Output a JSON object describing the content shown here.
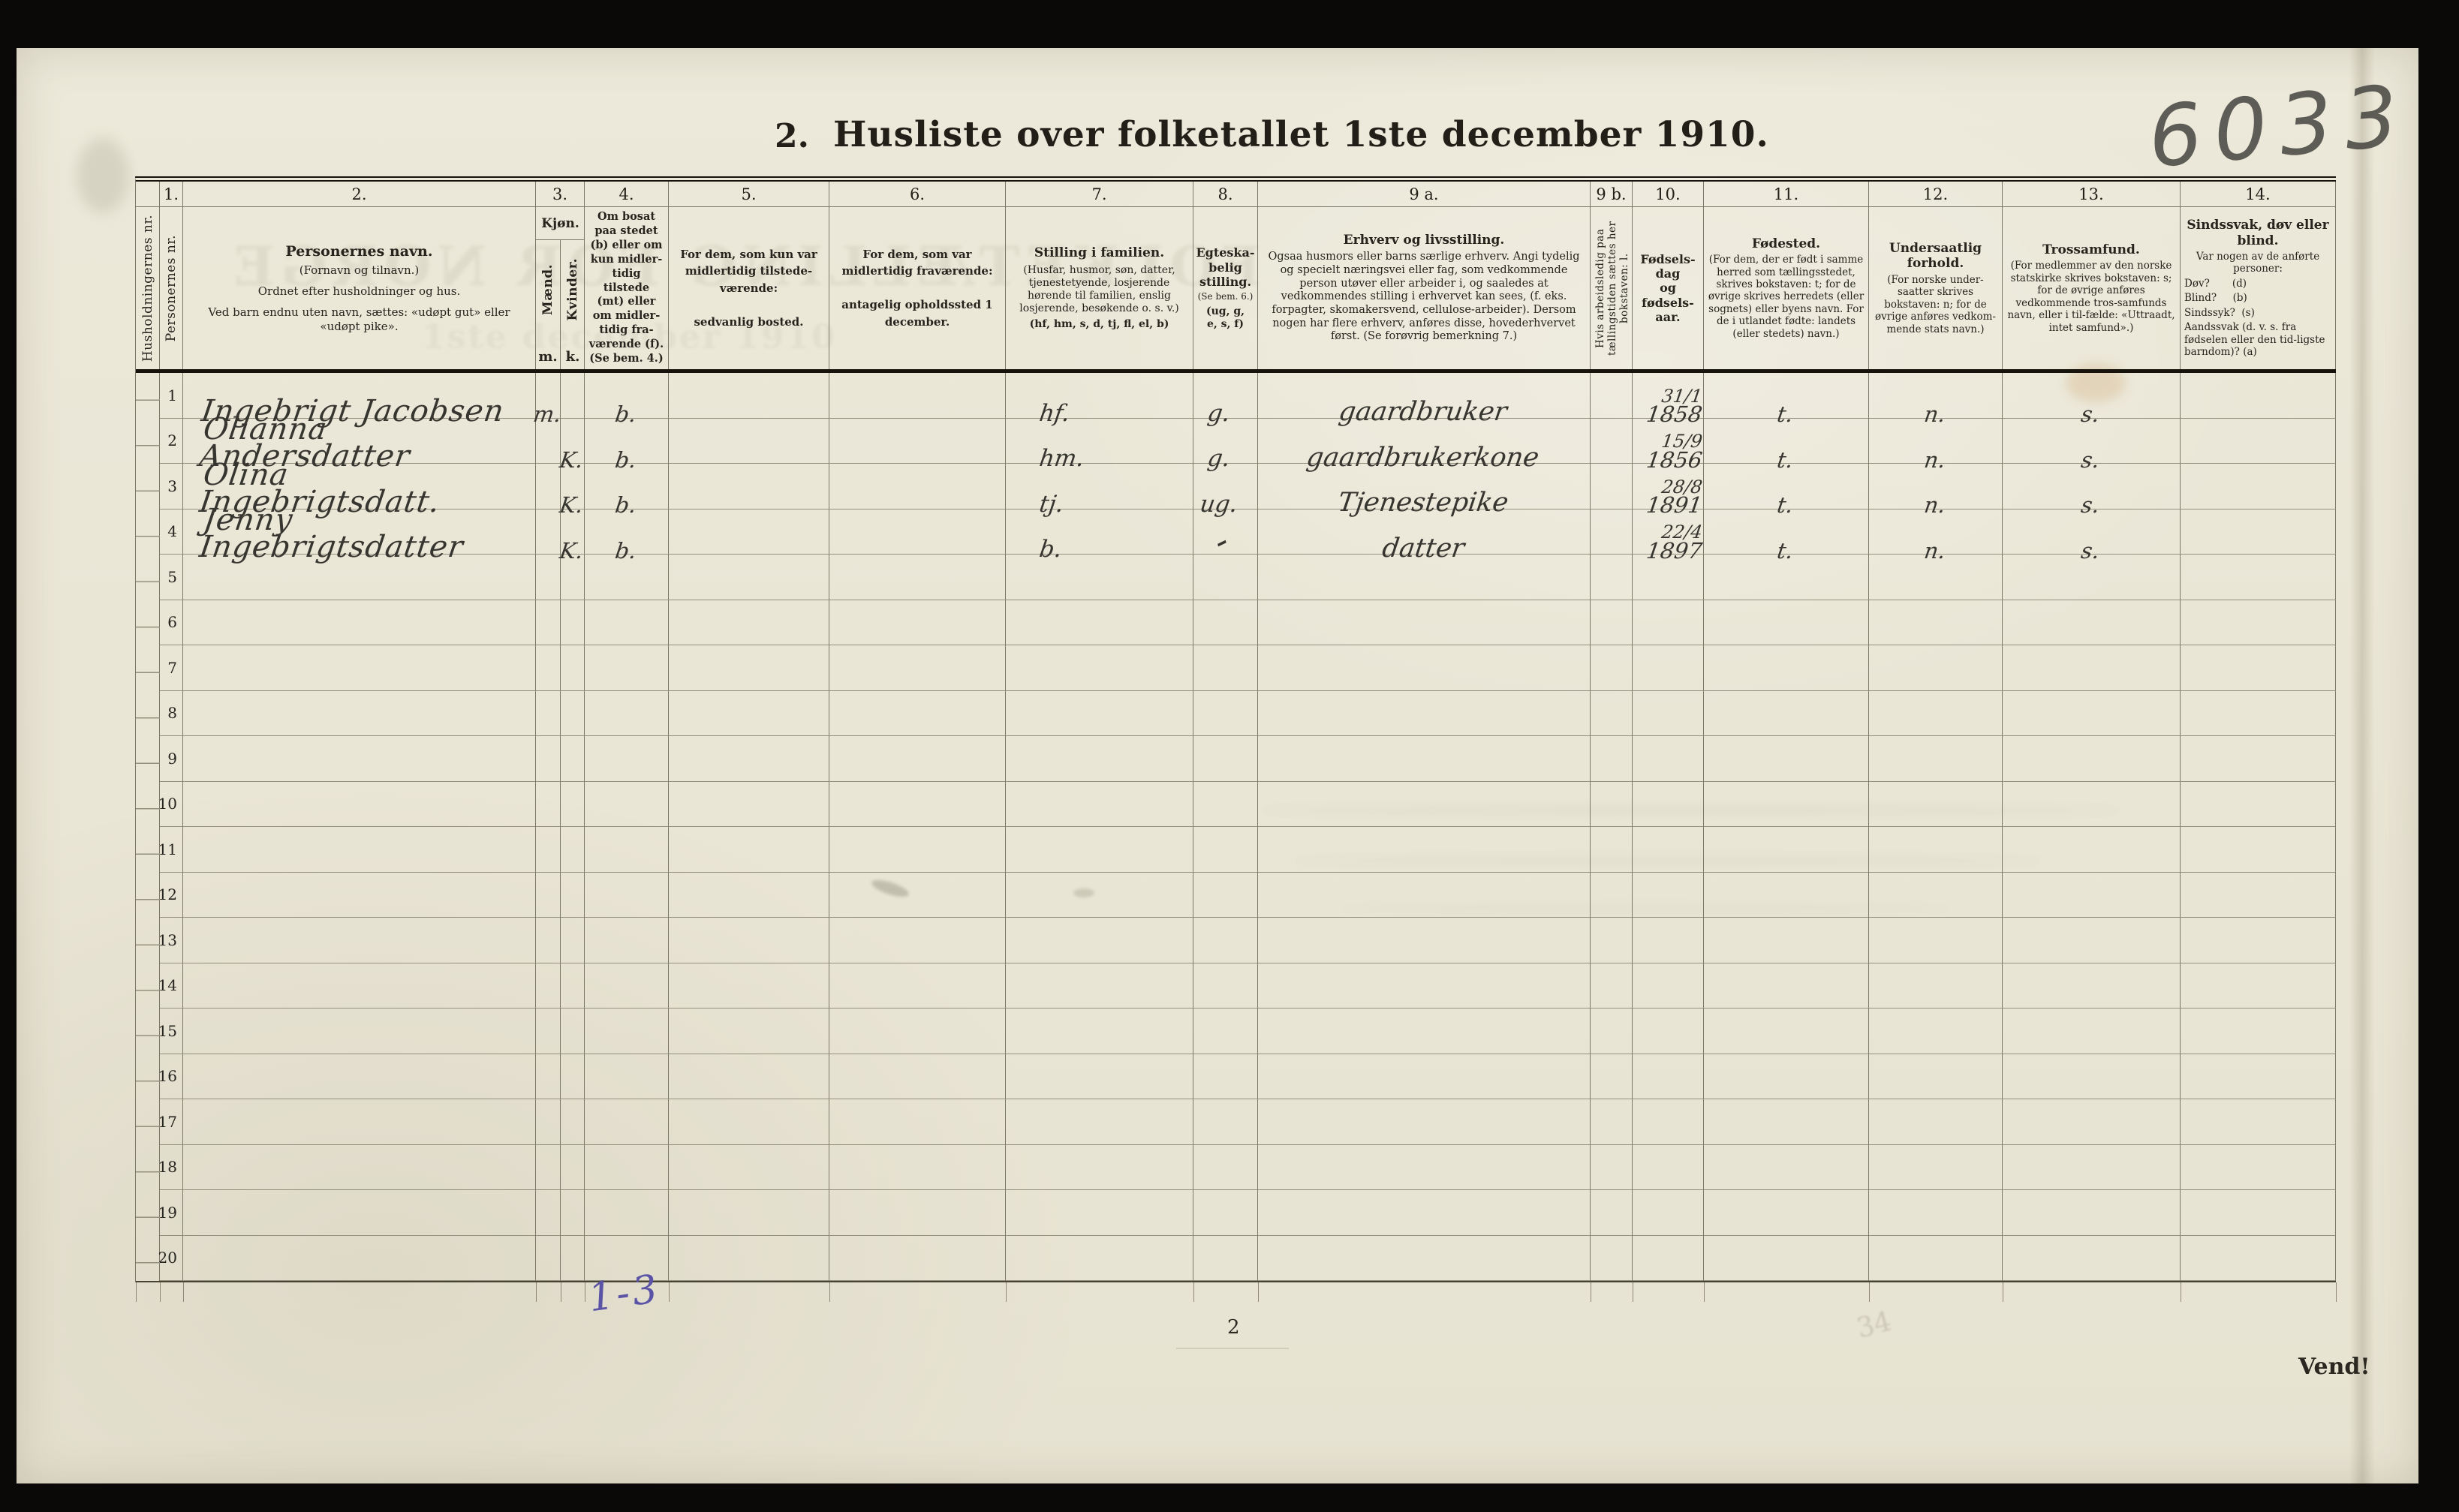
{
  "page": {
    "stamp": "6033",
    "title_prefix": "2.",
    "title": "Husliste over folketallet 1ste december 1910.",
    "page_number": "2",
    "turn_note": "Vend!",
    "note_blue": "1-3",
    "note_faint": "34"
  },
  "ghosts": {
    "line1": "FOLKETÆLLING FOR NORGE",
    "line2": "1ste december 1910"
  },
  "cols": {
    "a": {
      "label": "Husholdningernes nr."
    },
    "p1": {
      "num": "1.",
      "label": "Personernes nr."
    },
    "name": {
      "num": "2.",
      "t1": "Personernes navn.",
      "t2": "(Fornavn og tilnavn.)",
      "t3": "Ordnet efter husholdninger og hus.",
      "t4": "Ved barn endnu uten navn, sættes: «udøpt gut» eller «udøpt pike»."
    },
    "kjon": {
      "num": "3.",
      "title": "Kjøn.",
      "m_vert": "Mænd.",
      "k_vert": "Kvinder.",
      "m_abbr": "m.",
      "k_abbr": "k."
    },
    "c4": {
      "num": "4.",
      "text": "Om bosat\npaa stedet\n(b) eller om\nkun midler-\ntidig tilstede\n(mt) eller\nom midler-\ntidig fra-\nværende (f).\n(Se bem. 4.)"
    },
    "c5": {
      "num": "5.",
      "text": "For dem, som kun var midlertidig tilstede-værende:\n\nsedvanlig bosted."
    },
    "c6": {
      "num": "6.",
      "text": "For dem, som var midlertidig fraværende:\n\nantagelig opholdssted 1 december."
    },
    "c7": {
      "num": "7.",
      "title": "Stilling i familien.",
      "body": "(Husfar, husmor, søn, datter, tjenestetyende, losjerende hørende til familien, enslig losjerende, besøkende o. s. v.)",
      "codes": "(hf, hm, s, d, tj, fl, el, b)"
    },
    "c8": {
      "num": "8.",
      "title": "Egteska-\nbelig\nstilling.",
      "note": "(Se bem. 6.)",
      "codes": "(ug, g,\ne, s, f)"
    },
    "c9a": {
      "num": "9 a.",
      "title": "Erhverv og livsstilling.",
      "body": "Ogsaa husmors eller barns særlige erhverv. Angi tydelig og specielt næringsvei eller fag, som vedkommende person utøver eller arbeider i, og saaledes at vedkommendes stilling i erhvervet kan sees, (f. eks. forpagter, skomakersvend, cellulose-arbeider). Dersom nogen har flere erhverv, anføres disse, hovederhvervet først. (Se forøvrig bemerkning 7.)"
    },
    "c9b": {
      "num": "9 b.",
      "label": "Hvis arbeidsledig paa tællingstiden sættes her bokstaven: l."
    },
    "c10": {
      "num": "10.",
      "text": "Fødsels-\ndag\nog\nfødsels-\naar."
    },
    "c11": {
      "num": "11.",
      "title": "Fødested.",
      "body": "(For dem, der er født i samme herred som tællingsstedet, skrives bokstaven: t; for de øvrige skrives herredets (eller sognets) eller byens navn. For de i utlandet fødte: landets (eller stedets) navn.)"
    },
    "c12": {
      "num": "12.",
      "title": "Undersaatlig forhold.",
      "body": "(For norske under-saatter skrives bokstaven: n; for de øvrige anføres vedkom-mende stats navn.)"
    },
    "c13": {
      "num": "13.",
      "title": "Trossamfund.",
      "body": "(For medlemmer av den norske statskirke skrives bokstaven: s; for de øvrige anføres vedkommende tros-samfunds navn, eller i til-fælde: «Uttraadt, intet samfund».)"
    },
    "c14": {
      "num": "14.",
      "title": "Sindssvak, døv eller blind.",
      "intro": "Var nogen av de anførte personer:",
      "lines": [
        "Døv?       (d)",
        "Blind?     (b)",
        "Sindssyk?  (s)",
        "Aandssvak (d. v. s. fra fødselen eller den tid-ligste barndom)? (a)"
      ]
    }
  },
  "table": {
    "tilt_mark": "–",
    "rows": [
      {
        "nr": "1",
        "name": "Ingebrigt Jacobsen",
        "m": "m.",
        "k": "",
        "bosatt": "b.",
        "stilling": "hf.",
        "egteskap": "g.",
        "erhverv": "gaardbruker",
        "fodt_dag": "31/1",
        "fodt_aar": "1858",
        "fodested": "t.",
        "undersaatlig": "n.",
        "trossamfund": "s."
      },
      {
        "nr": "2",
        "name": "Olianna Andersdatter",
        "m": "",
        "k": "K.",
        "bosatt": "b.",
        "stilling": "hm.",
        "egteskap": "g.",
        "erhverv": "gaardbrukerkone",
        "fodt_dag": "15/9",
        "fodt_aar": "1856",
        "fodested": "t.",
        "undersaatlig": "n.",
        "trossamfund": "s."
      },
      {
        "nr": "3",
        "name": "Olina Ingebrigtsdatt.",
        "m": "",
        "k": "K.",
        "bosatt": "b.",
        "stilling": "tj.",
        "egteskap": "ug.",
        "erhverv": "Tjenestepike",
        "fodt_dag": "28/8",
        "fodt_aar": "1891",
        "fodested": "t.",
        "undersaatlig": "n.",
        "trossamfund": "s."
      },
      {
        "nr": "4",
        "name": "Jenny Ingebrigtsdatter",
        "m": "",
        "k": "K.",
        "bosatt": "b.",
        "stilling": "b.",
        "egteskap": "–",
        "erhverv": "datter",
        "fodt_dag": "22/4",
        "fodt_aar": "1897",
        "fodested": "t.",
        "undersaatlig": "n.",
        "trossamfund": "s."
      },
      {
        "nr": "5"
      },
      {
        "nr": "6"
      },
      {
        "nr": "7"
      },
      {
        "nr": "8"
      },
      {
        "nr": "9"
      },
      {
        "nr": "10"
      },
      {
        "nr": "11"
      },
      {
        "nr": "12"
      },
      {
        "nr": "13"
      },
      {
        "nr": "14"
      },
      {
        "nr": "15"
      },
      {
        "nr": "16"
      },
      {
        "nr": "17"
      },
      {
        "nr": "18"
      },
      {
        "nr": "19"
      },
      {
        "nr": "20"
      }
    ]
  }
}
